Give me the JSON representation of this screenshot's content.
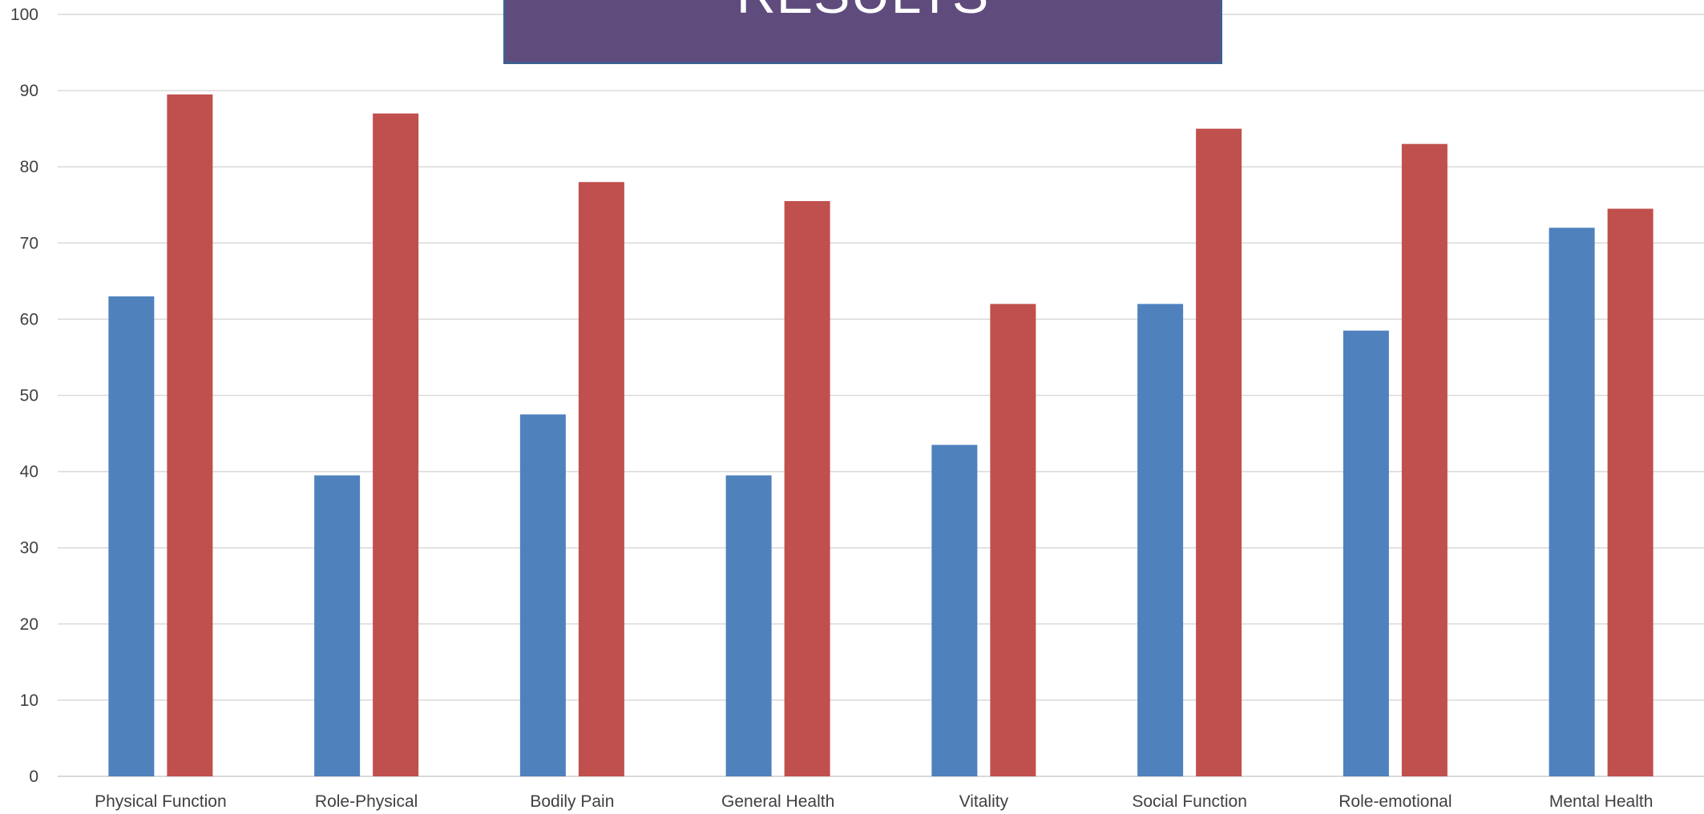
{
  "title": "RESULTS",
  "colors": {
    "series_1": "#4f81bd",
    "series_2": "#c0504d",
    "title_background": "#604b7d",
    "title_border": "#3e5f8f",
    "gridline": "#d9d9d9",
    "tick_label": "#404040"
  },
  "chart_data": {
    "type": "bar",
    "categories": [
      "Physical Function",
      "Role-Physical",
      "Bodily Pain",
      "General Health",
      "Vitality",
      "Social Function",
      "Role-emotional",
      "Mental Health"
    ],
    "series": [
      {
        "values": [
          63,
          39.5,
          47.5,
          39.5,
          43.5,
          62,
          58.5,
          72
        ],
        "color": "#4f81bd"
      },
      {
        "values": [
          89.5,
          87,
          78,
          75.5,
          62,
          85,
          83,
          74.5
        ],
        "color": "#c0504d"
      }
    ],
    "yticks": [
      "0",
      "10",
      "20",
      "30",
      "40",
      "50",
      "60",
      "70",
      "80",
      "90",
      "100"
    ],
    "ylim": [
      0,
      100
    ],
    "xlabel": "",
    "ylabel": "",
    "grid": true,
    "legend": "none"
  }
}
